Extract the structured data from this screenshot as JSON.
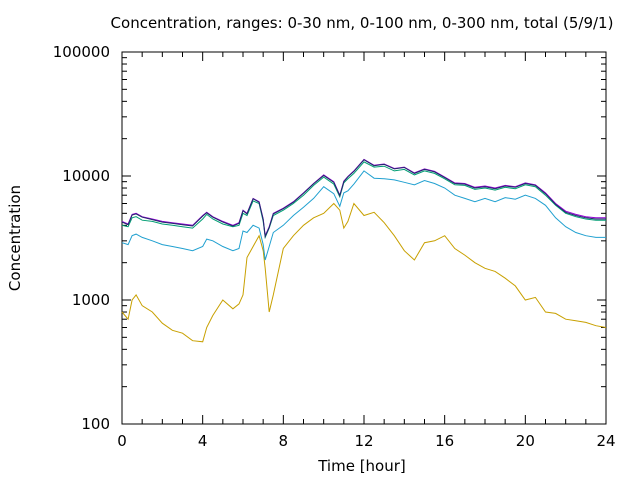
{
  "chart_data": {
    "type": "line",
    "title": "Concentration, ranges: 0-30 nm, 0-100 nm, 0-300 nm, total (5/9/1)",
    "xlabel": "Time [hour]",
    "ylabel": "Concentration",
    "xlim": [
      0,
      24
    ],
    "ylim": [
      100,
      100000
    ],
    "yscale": "log",
    "grid": false,
    "x_ticks": [
      0,
      4,
      8,
      12,
      16,
      20,
      24
    ],
    "y_ticks": [
      100,
      1000,
      10000,
      100000
    ],
    "x_tick_labels": [
      "0",
      "4",
      "8",
      "12",
      "16",
      "20",
      "24"
    ],
    "y_tick_labels": [
      "100",
      "1000",
      "10000",
      "100000"
    ],
    "x": [
      0,
      0.3,
      0.5,
      0.7,
      1,
      1.5,
      2,
      2.5,
      3,
      3.5,
      4,
      4.2,
      4.5,
      5,
      5.5,
      5.8,
      6,
      6.2,
      6.5,
      6.8,
      7,
      7.1,
      7.3,
      7.5,
      8,
      8.5,
      9,
      9.5,
      10,
      10.5,
      10.8,
      11,
      11.2,
      11.5,
      12,
      12.5,
      13,
      13.5,
      14,
      14.5,
      15,
      15.5,
      16,
      16.5,
      17,
      17.5,
      18,
      18.5,
      19,
      19.5,
      20,
      20.5,
      21,
      21.5,
      22,
      22.5,
      23,
      23.5,
      24
    ],
    "series": [
      {
        "color": "#c8a000",
        "values": [
          800,
          700,
          1000,
          1100,
          900,
          800,
          650,
          570,
          540,
          470,
          460,
          600,
          750,
          1000,
          850,
          930,
          1100,
          2200,
          2700,
          3300,
          2500,
          1800,
          800,
          1100,
          2600,
          3300,
          4000,
          4600,
          5000,
          6000,
          5300,
          3800,
          4300,
          6000,
          4800,
          5100,
          4200,
          3300,
          2500,
          2100,
          2900,
          3000,
          3300,
          2600,
          2300,
          2000,
          1800,
          1700,
          1500,
          1300,
          1000,
          1050,
          800,
          780,
          700,
          680,
          660,
          620,
          600
        ]
      },
      {
        "color": "#20a0d0",
        "values": [
          2900,
          2800,
          3300,
          3400,
          3200,
          3000,
          2800,
          2700,
          2600,
          2500,
          2700,
          3100,
          3000,
          2700,
          2500,
          2600,
          3600,
          3500,
          4000,
          3800,
          2800,
          2100,
          2700,
          3500,
          4000,
          4800,
          5600,
          6600,
          8200,
          7200,
          5700,
          7300,
          7600,
          8600,
          11000,
          9600,
          9500,
          9300,
          8900,
          8500,
          9200,
          8700,
          8000,
          7000,
          6600,
          6200,
          6600,
          6200,
          6700,
          6500,
          7000,
          6600,
          5800,
          4600,
          3900,
          3500,
          3300,
          3200,
          3200
        ]
      },
      {
        "color": "#009e73",
        "values": [
          4000,
          3900,
          4600,
          4700,
          4400,
          4300,
          4100,
          4000,
          3900,
          3800,
          4500,
          4900,
          4500,
          4100,
          3900,
          4000,
          5000,
          4800,
          6300,
          6000,
          4300,
          3200,
          3800,
          4800,
          5300,
          6000,
          7000,
          8400,
          9800,
          8600,
          6800,
          8800,
          9500,
          10500,
          13000,
          11800,
          12000,
          11000,
          11300,
          10200,
          11000,
          10500,
          9500,
          8500,
          8400,
          7800,
          8000,
          7700,
          8100,
          7900,
          8500,
          8200,
          7000,
          5800,
          5000,
          4700,
          4500,
          4400,
          4400
        ]
      },
      {
        "color": "#9400d3",
        "values": [
          4300,
          4100,
          4900,
          5000,
          4700,
          4500,
          4300,
          4200,
          4100,
          4000,
          4800,
          5100,
          4700,
          4300,
          4000,
          4200,
          5300,
          5000,
          6600,
          6200,
          4500,
          3300,
          3900,
          5000,
          5500,
          6200,
          7300,
          8700,
          10200,
          9000,
          7000,
          9100,
          9900,
          11000,
          13600,
          12200,
          12500,
          11500,
          11800,
          10600,
          11400,
          10900,
          9800,
          8800,
          8700,
          8100,
          8300,
          8000,
          8400,
          8200,
          8800,
          8500,
          7300,
          6000,
          5200,
          4900,
          4700,
          4600,
          4600
        ]
      },
      {
        "color": "#1f2a6b",
        "values": [
          4250,
          4050,
          4850,
          4950,
          4650,
          4450,
          4250,
          4150,
          4050,
          3950,
          4750,
          5050,
          4650,
          4250,
          3950,
          4150,
          5250,
          4950,
          6550,
          6150,
          4450,
          3250,
          3850,
          4950,
          5450,
          6150,
          7250,
          8650,
          10100,
          8900,
          6950,
          9000,
          9850,
          10900,
          13500,
          12100,
          12400,
          11400,
          11700,
          10500,
          11300,
          10800,
          9700,
          8700,
          8600,
          8000,
          8200,
          7900,
          8300,
          8100,
          8700,
          8400,
          7200,
          5900,
          5100,
          4800,
          4600,
          4500,
          4500
        ]
      }
    ]
  }
}
